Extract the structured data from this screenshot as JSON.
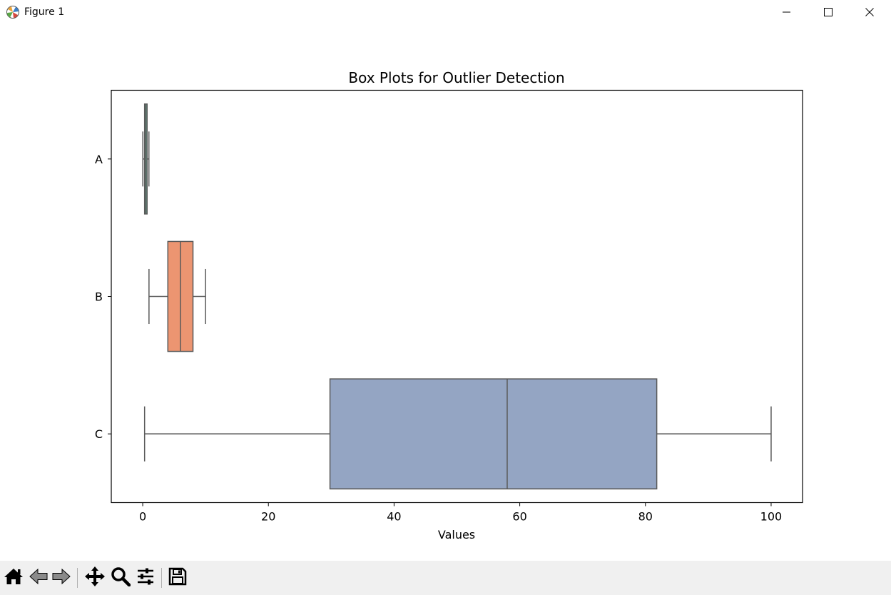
{
  "window": {
    "title": "Figure 1",
    "icon": "matplotlib-icon",
    "controls": [
      "minimize-icon",
      "maximize-icon",
      "close-icon"
    ]
  },
  "toolbar": {
    "buttons": [
      "home-icon",
      "back-icon",
      "forward-icon",
      "pan-icon",
      "zoom-icon",
      "configure-subplots-icon",
      "save-icon"
    ]
  },
  "chart_data": {
    "type": "box",
    "orientation": "horizontal",
    "title": "Box Plots for Outlier Detection",
    "xlabel": "Values",
    "ylabel": "",
    "xlim": [
      -5,
      105
    ],
    "xticks": [
      0,
      20,
      40,
      60,
      80,
      100
    ],
    "categories": [
      "A",
      "B",
      "C"
    ],
    "grid": false,
    "series": [
      {
        "category": "A",
        "whisker_low": 0.02,
        "q1": 0.3,
        "median": 0.5,
        "q3": 0.7,
        "whisker_high": 0.99,
        "color": "#66c2a5"
      },
      {
        "category": "B",
        "whisker_low": 1.0,
        "q1": 4.0,
        "median": 6.0,
        "q3": 8.0,
        "whisker_high": 10.0,
        "color": "#ec9571"
      },
      {
        "category": "C",
        "whisker_low": 0.3,
        "q1": 29.8,
        "median": 58.0,
        "q3": 81.8,
        "whisker_high": 100.0,
        "color": "#94a5c3"
      }
    ],
    "line_color": "#595959"
  }
}
